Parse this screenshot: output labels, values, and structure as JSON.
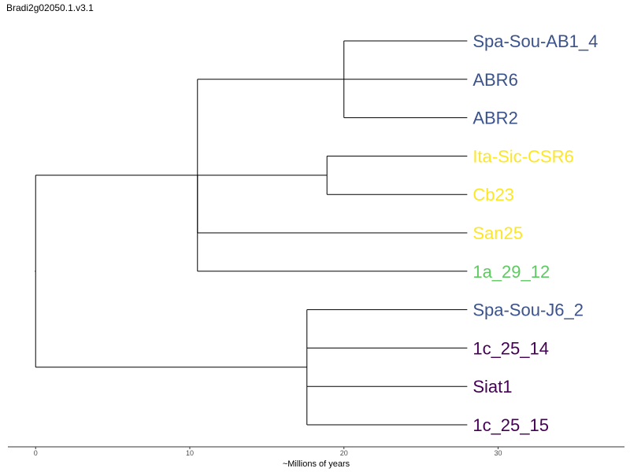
{
  "title": "Bradi2g02050.1.v3.1",
  "axis": {
    "label": "~Millions of years",
    "ticks": [
      0,
      10,
      20,
      30
    ],
    "range": [
      -1.8,
      38.2
    ]
  },
  "colors": {
    "blue": "#3b528b",
    "yellow": "#fde725",
    "green": "#5ec962",
    "purple": "#440154",
    "branch": "#000000"
  },
  "tree": {
    "age": 0,
    "children": [
      {
        "age": 10.5,
        "children": [
          {
            "age": 20,
            "children": [
              {
                "name": "Spa-Sou-AB1_4",
                "color": "blue"
              },
              {
                "name": "ABR6",
                "color": "blue"
              },
              {
                "name": "ABR2",
                "color": "blue"
              }
            ]
          },
          {
            "age": 10.5,
            "children": [
              {
                "age": 18.9,
                "children": [
                  {
                    "name": "Ita-Sic-CSR6",
                    "color": "yellow"
                  },
                  {
                    "name": "Cb23",
                    "color": "yellow"
                  }
                ]
              },
              {
                "name": "San25",
                "color": "yellow"
              }
            ]
          },
          {
            "name": "1a_29_12",
            "color": "green"
          }
        ]
      },
      {
        "age": 17.6,
        "children": [
          {
            "name": "Spa-Sou-J6_2",
            "color": "blue"
          },
          {
            "name": "1c_25_14",
            "color": "purple"
          },
          {
            "name": "Siat1",
            "color": "purple"
          },
          {
            "name": "1c_25_15",
            "color": "purple"
          }
        ]
      }
    ]
  },
  "tip_age": 28
}
